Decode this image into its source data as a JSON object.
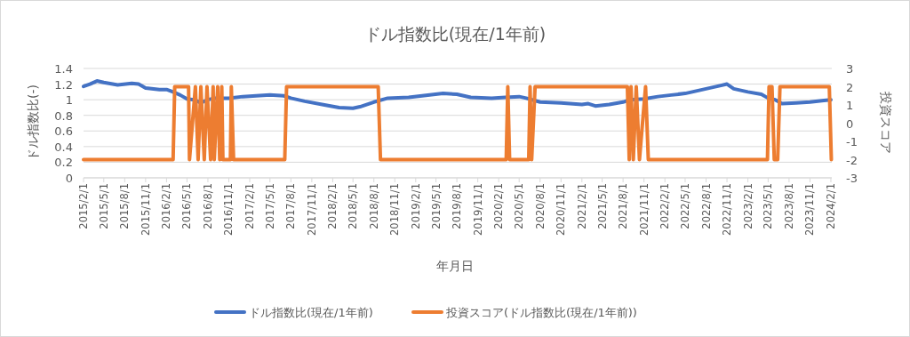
{
  "chart_data": {
    "type": "line",
    "title": "ドル指数比(現在/1年前)",
    "xlabel": "年月日",
    "ylabel": "ドル指数比(-)",
    "y2label": "投資スコア",
    "grid": "y",
    "legend": "bottom",
    "line_style": "solid",
    "marker": "none",
    "xlim": [
      "2015-02-01",
      "2024-02-05"
    ],
    "xticks": [
      {
        "value": "2015-02-01",
        "label": "2015/2/1"
      },
      {
        "value": "2015-05-01",
        "label": "2015/5/1"
      },
      {
        "value": "2015-08-01",
        "label": "2015/8/1"
      },
      {
        "value": "2015-11-01",
        "label": "2015/11/1"
      },
      {
        "value": "2016-02-01",
        "label": "2016/2/1"
      },
      {
        "value": "2016-05-01",
        "label": "2016/5/1"
      },
      {
        "value": "2016-08-01",
        "label": "2016/8/1"
      },
      {
        "value": "2016-11-01",
        "label": "2016/11/1"
      },
      {
        "value": "2017-02-01",
        "label": "2017/2/1"
      },
      {
        "value": "2017-05-01",
        "label": "2017/5/1"
      },
      {
        "value": "2017-08-01",
        "label": "2017/8/1"
      },
      {
        "value": "2017-11-01",
        "label": "2017/11/1"
      },
      {
        "value": "2018-02-01",
        "label": "2018/2/1"
      },
      {
        "value": "2018-05-01",
        "label": "2018/5/1"
      },
      {
        "value": "2018-08-01",
        "label": "2018/8/1"
      },
      {
        "value": "2018-11-01",
        "label": "2018/11/1"
      },
      {
        "value": "2019-02-01",
        "label": "2019/2/1"
      },
      {
        "value": "2019-05-01",
        "label": "2019/5/1"
      },
      {
        "value": "2019-08-01",
        "label": "2019/8/1"
      },
      {
        "value": "2019-11-01",
        "label": "2019/11/1"
      },
      {
        "value": "2020-02-01",
        "label": "2020/2/1"
      },
      {
        "value": "2020-05-01",
        "label": "2020/5/1"
      },
      {
        "value": "2020-08-01",
        "label": "2020/8/1"
      },
      {
        "value": "2020-11-01",
        "label": "2020/11/1"
      },
      {
        "value": "2021-02-01",
        "label": "2021/2/1"
      },
      {
        "value": "2021-05-01",
        "label": "2021/5/1"
      },
      {
        "value": "2021-08-01",
        "label": "2021/8/1"
      },
      {
        "value": "2021-11-01",
        "label": "2021/11/1"
      },
      {
        "value": "2022-02-01",
        "label": "2022/2/1"
      },
      {
        "value": "2022-05-01",
        "label": "2022/5/1"
      },
      {
        "value": "2022-08-01",
        "label": "2022/8/1"
      },
      {
        "value": "2022-11-01",
        "label": "2022/11/1"
      },
      {
        "value": "2023-02-01",
        "label": "2023/2/1"
      },
      {
        "value": "2023-05-01",
        "label": "2023/5/1"
      },
      {
        "value": "2023-08-01",
        "label": "2023/8/1"
      },
      {
        "value": "2023-11-01",
        "label": "2023/11/1"
      },
      {
        "value": "2024-02-01",
        "label": "2024/2/1"
      }
    ],
    "ylim": [
      0,
      1.4
    ],
    "yticks": [
      0,
      0.2,
      0.4,
      0.6,
      0.8,
      1,
      1.2,
      1.4
    ],
    "y2lim": [
      -3,
      3
    ],
    "y2ticks": [
      -3,
      -2,
      -1,
      0,
      1,
      2,
      3
    ],
    "series": [
      {
        "name": "ドル指数比(現在/1年前)",
        "color": "#4472c4",
        "x": [
          "2015-02-01",
          "2015-03-01",
          "2015-04-01",
          "2015-05-01",
          "2015-07-01",
          "2015-09-01",
          "2015-10-01",
          "2015-11-01",
          "2016-01-01",
          "2016-02-01",
          "2016-03-01",
          "2016-04-01",
          "2016-05-01",
          "2016-06-01",
          "2016-07-01",
          "2016-08-01",
          "2016-09-01",
          "2016-11-01",
          "2017-01-01",
          "2017-03-01",
          "2017-05-01",
          "2017-07-01",
          "2017-08-01",
          "2017-10-01",
          "2018-01-01",
          "2018-03-01",
          "2018-05-01",
          "2018-06-01",
          "2018-08-01",
          "2018-10-01",
          "2019-01-01",
          "2019-03-01",
          "2019-06-01",
          "2019-08-01",
          "2019-10-01",
          "2020-01-01",
          "2020-03-01",
          "2020-05-01",
          "2020-06-01",
          "2020-08-01",
          "2020-11-01",
          "2021-02-01",
          "2021-03-01",
          "2021-04-01",
          "2021-06-01",
          "2021-08-01",
          "2021-09-01",
          "2021-11-01",
          "2022-01-01",
          "2022-03-01",
          "2022-05-01",
          "2022-06-01",
          "2022-08-01",
          "2022-10-01",
          "2022-11-01",
          "2022-12-01",
          "2023-02-01",
          "2023-04-01",
          "2023-05-01",
          "2023-06-01",
          "2023-07-01",
          "2023-09-01",
          "2023-11-01",
          "2024-01-01",
          "2024-02-01"
        ],
        "values": [
          1.17,
          1.2,
          1.24,
          1.22,
          1.19,
          1.21,
          1.2,
          1.15,
          1.13,
          1.13,
          1.1,
          1.06,
          1.01,
          1.0,
          0.96,
          1.0,
          1.02,
          1.02,
          1.04,
          1.05,
          1.06,
          1.05,
          1.02,
          0.98,
          0.93,
          0.9,
          0.89,
          0.91,
          0.97,
          1.02,
          1.03,
          1.05,
          1.08,
          1.07,
          1.03,
          1.02,
          1.03,
          1.04,
          1.02,
          0.97,
          0.96,
          0.94,
          0.95,
          0.92,
          0.94,
          0.97,
          1.0,
          1.01,
          1.04,
          1.06,
          1.08,
          1.1,
          1.14,
          1.18,
          1.2,
          1.14,
          1.1,
          1.07,
          1.02,
          1.0,
          0.95,
          0.96,
          0.97,
          0.99,
          1.0
        ]
      },
      {
        "name": "投資スコア(ドル指数比(現在/1年前))",
        "color": "#ed7d31",
        "axis": "y2",
        "x": [
          "2015-02-01",
          "2016-03-01",
          "2016-03-08",
          "2016-05-08",
          "2016-05-12",
          "2016-06-07",
          "2016-06-19",
          "2016-07-01",
          "2016-07-16",
          "2016-07-28",
          "2016-08-13",
          "2016-08-24",
          "2016-08-29",
          "2016-09-13",
          "2016-09-22",
          "2016-10-01",
          "2016-10-06",
          "2016-11-08",
          "2016-11-12",
          "2016-11-22",
          "2017-07-05",
          "2017-07-13",
          "2018-08-20",
          "2018-08-30",
          "2020-03-05",
          "2020-03-12",
          "2020-03-20",
          "2020-06-12",
          "2020-06-18",
          "2020-06-25",
          "2020-07-10",
          "2021-08-20",
          "2021-08-28",
          "2021-09-05",
          "2021-09-15",
          "2021-09-28",
          "2021-10-12",
          "2021-11-08",
          "2021-11-20",
          "2023-04-28",
          "2023-05-05",
          "2023-05-18",
          "2023-05-28",
          "2023-06-12",
          "2023-06-22",
          "2024-01-25",
          "2024-02-03"
        ],
        "values": [
          -2,
          -2,
          2,
          2,
          -2,
          2,
          -2,
          2,
          -2,
          2,
          -2,
          2,
          -2,
          2,
          -2,
          2,
          -2,
          -2,
          2,
          -2,
          -2,
          2,
          2,
          -2,
          -2,
          2,
          -2,
          -2,
          2,
          -2,
          2,
          2,
          -2,
          2,
          -2,
          2,
          -2,
          2,
          -2,
          -2,
          2,
          2,
          -2,
          -2,
          2,
          2,
          -2
        ]
      }
    ]
  }
}
